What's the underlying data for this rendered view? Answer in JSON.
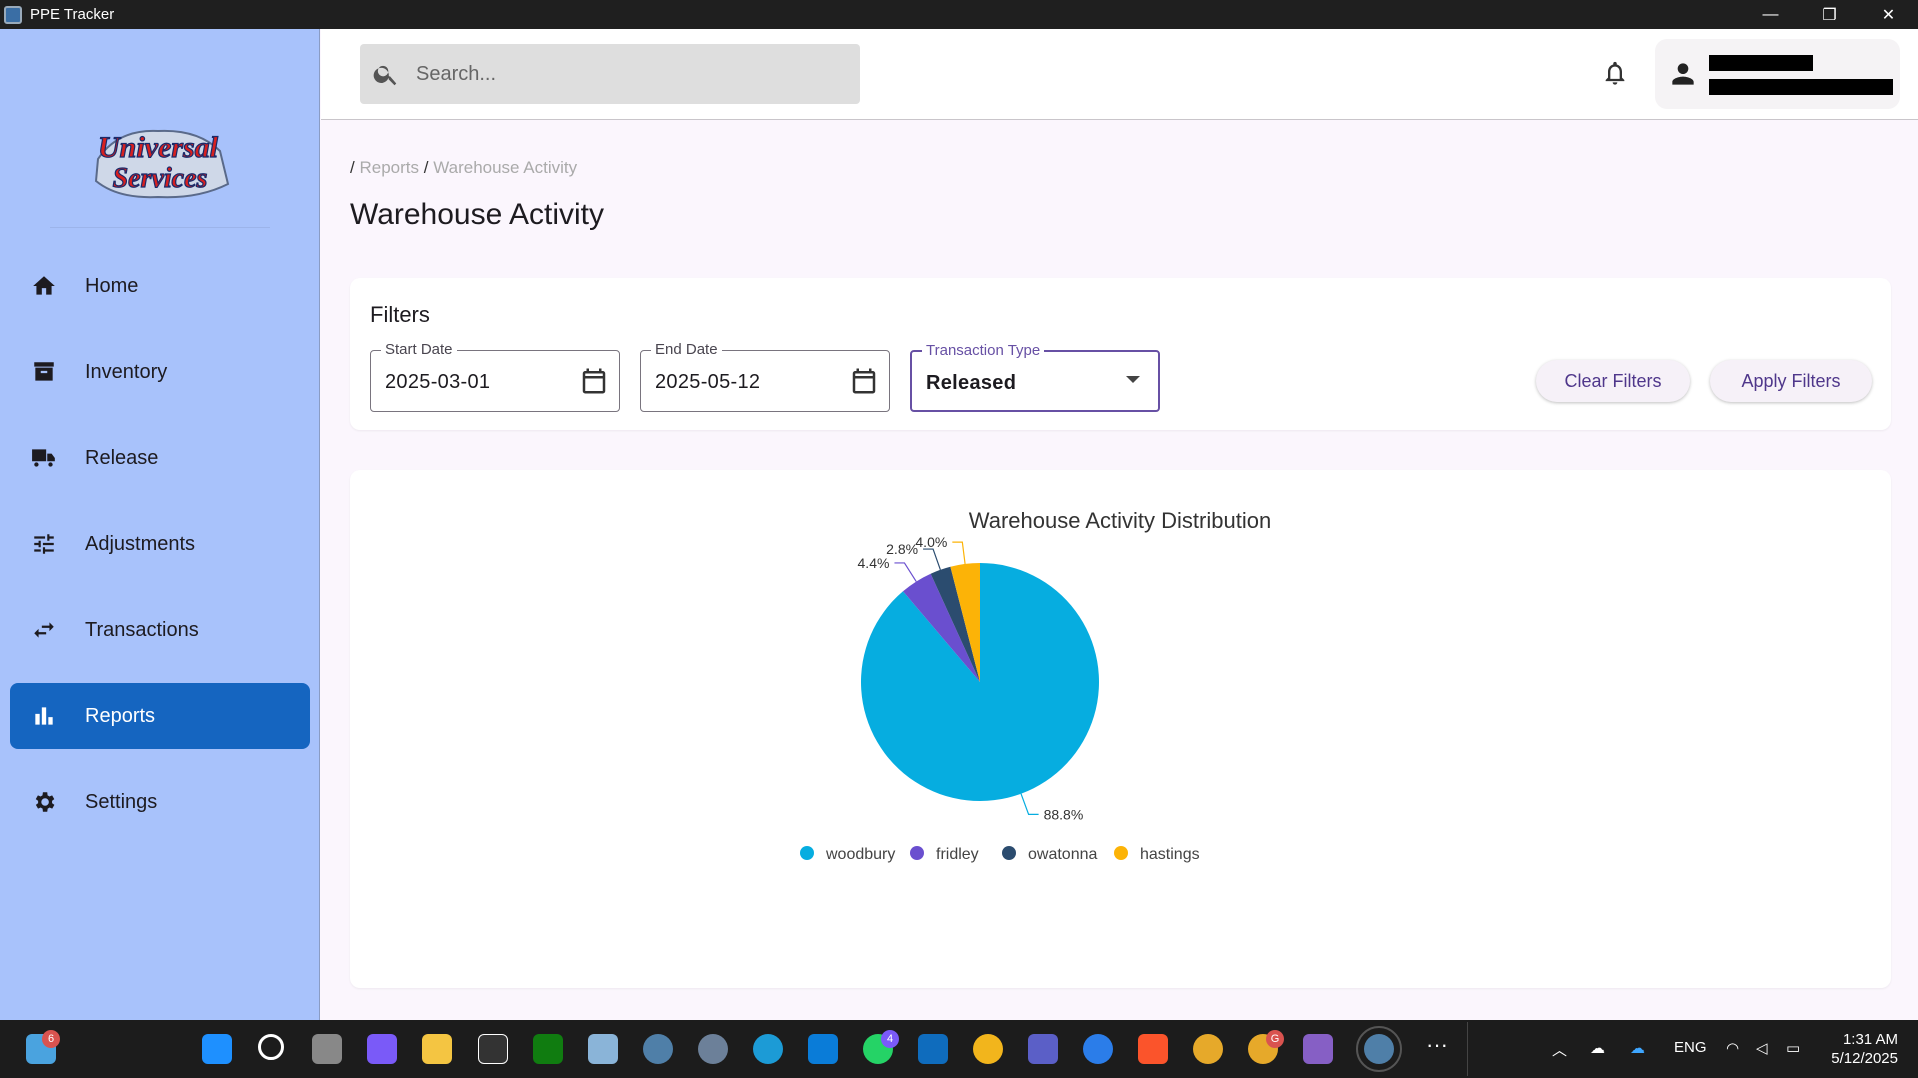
{
  "window": {
    "title": "PPE Tracker",
    "minimize": "—",
    "maximize": "❐",
    "close": "✕"
  },
  "sidebar": {
    "logo_text_1": "Universal",
    "logo_text_2": "Services",
    "items": [
      {
        "label": "Home",
        "icon": "home-icon"
      },
      {
        "label": "Inventory",
        "icon": "archive-icon"
      },
      {
        "label": "Release",
        "icon": "truck-icon"
      },
      {
        "label": "Adjustments",
        "icon": "tune-icon"
      },
      {
        "label": "Transactions",
        "icon": "swap-icon"
      },
      {
        "label": "Reports",
        "icon": "bar-chart-icon",
        "active": true
      },
      {
        "label": "Settings",
        "icon": "gear-icon"
      }
    ]
  },
  "topbar": {
    "search_placeholder": "Search..."
  },
  "breadcrumb": {
    "sep": "/",
    "items": [
      "Reports",
      "Warehouse Activity"
    ]
  },
  "page_title": "Warehouse Activity",
  "filters": {
    "title": "Filters",
    "start_date": {
      "label": "Start Date",
      "value": "2025-03-01"
    },
    "end_date": {
      "label": "End Date",
      "value": "2025-05-12"
    },
    "transaction_type": {
      "label": "Transaction Type",
      "value": "Released"
    },
    "clear_label": "Clear Filters",
    "apply_label": "Apply Filters"
  },
  "chart_data": {
    "type": "pie",
    "title": "Warehouse Activity Distribution",
    "slices": [
      {
        "name": "woodbury",
        "value": 88.8,
        "label": "88.8%",
        "color": "#06ade0"
      },
      {
        "name": "fridley",
        "value": 4.4,
        "label": "4.4%",
        "color": "#6a4fcf"
      },
      {
        "name": "owatonna",
        "value": 2.8,
        "label": "2.8%",
        "color": "#2b4c6f"
      },
      {
        "name": "hastings",
        "value": 4.0,
        "label": "4.0%",
        "color": "#fcb307"
      }
    ],
    "legend_position": "bottom"
  },
  "taskbar": {
    "copilot_badge": "6",
    "whatsapp_badge": "4",
    "chrome_badge": "G",
    "language": "ENG",
    "time": "1:31 AM",
    "date": "5/12/2025"
  }
}
